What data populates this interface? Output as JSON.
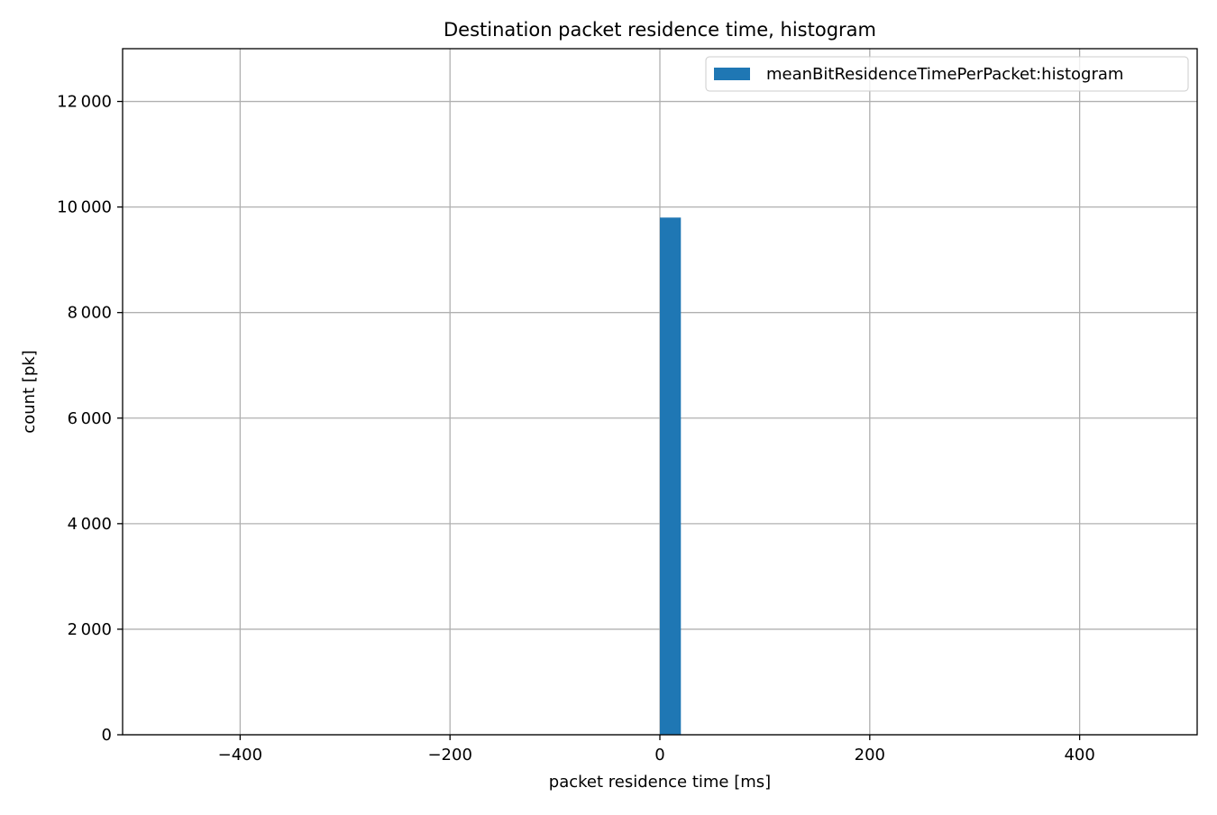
{
  "chart_data": {
    "type": "bar",
    "title": "Destination packet residence time, histogram",
    "xlabel": "packet residence time [ms]",
    "ylabel": "count [pk]",
    "xlim": [
      -512,
      512
    ],
    "ylim": [
      0,
      13000
    ],
    "x_ticks": [
      -400,
      -200,
      0,
      200,
      400
    ],
    "x_tick_labels": [
      "−400",
      "−200",
      "0",
      "200",
      "400"
    ],
    "y_ticks": [
      0,
      2000,
      4000,
      6000,
      8000,
      10000,
      12000
    ],
    "y_tick_labels": [
      "0",
      "2 000",
      "4 000",
      "6 000",
      "8 000",
      "10 000",
      "12 000"
    ],
    "grid": true,
    "legend_position": "top-right",
    "series": [
      {
        "name": "meanBitResidenceTimePerPacket:histogram",
        "color": "#1f77b4",
        "bins": [
          {
            "x_start": 0,
            "x_end": 20,
            "count": 9800
          }
        ]
      }
    ]
  }
}
